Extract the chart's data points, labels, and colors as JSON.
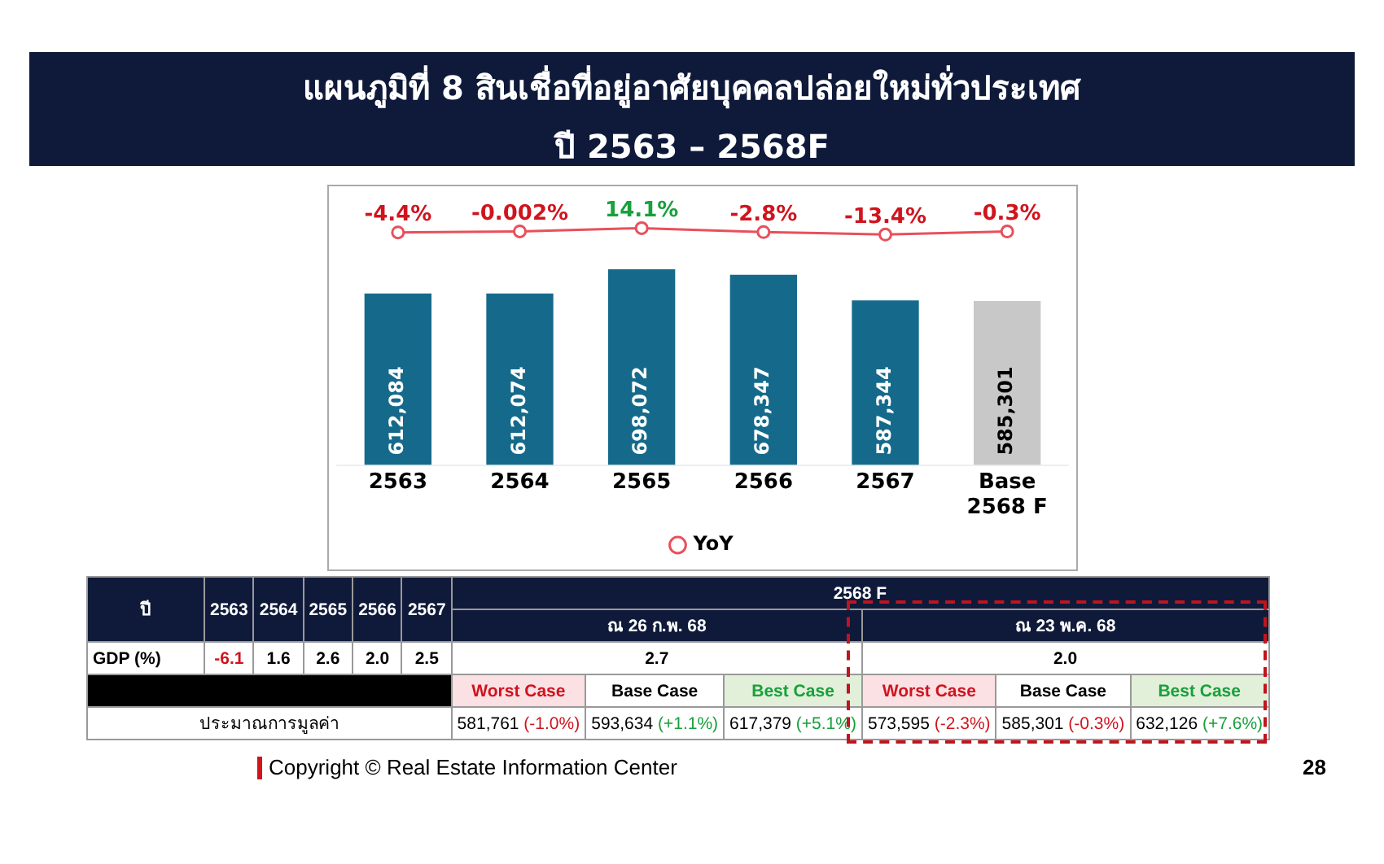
{
  "chart_data": {
    "type": "bar",
    "title": "แผนภูมิที่ 8 สินเชื่อที่อยู่อาศัยบุคคลปล่อยใหม่ทั่วประเทศ",
    "subtitle": "ปี 2563 – 2568F",
    "categories": [
      "2563",
      "2564",
      "2565",
      "2566",
      "2567",
      "Base 2568 F"
    ],
    "series": [
      {
        "colors": [
          "#156a8c",
          "#156a8c",
          "#156a8c",
          "#156a8c",
          "#156a8c",
          "#c8c8c8"
        ],
        "values": [
          612084,
          612074,
          698072,
          678347,
          587344,
          585301
        ],
        "value_labels": [
          "612,084",
          "612,074",
          "698,072",
          "678,347",
          "587,344",
          "585,301"
        ]
      },
      {
        "type": "line",
        "name": "YoY",
        "axis": "y2",
        "color": "#e8505b",
        "values": [
          -4.4,
          -0.002,
          14.1,
          -2.8,
          -13.4,
          -0.3
        ],
        "value_labels": [
          "-4.4%",
          "-0.002%",
          "14.1%",
          "-2.8%",
          "-13.4%",
          "-0.3%"
        ]
      }
    ],
    "ylim": [
      0,
      1000000
    ],
    "y2lim": [
      -1000,
      200
    ],
    "tick_labels": "x",
    "grid": false,
    "legend": "bottom",
    "marker": "circle",
    "line_style": "solid",
    "annotations": [
      "ปี",
      "2563",
      "2564",
      "2565",
      "2566",
      "2567",
      "2568 F",
      "ณ 26 ก.พ. 68",
      "ณ 23 พ.ค. 68",
      "GDP (%)",
      "-6.1",
      "1.6",
      "2.6",
      "2.0",
      "2.5",
      "2.7",
      "2.0",
      "Worst Case",
      "Base Case",
      "Best Case",
      "Worst Case",
      "Base Case",
      "Best Case",
      "ประมาณการมูลค่า",
      "581,761 (-1.0%)",
      "593,634 (+1.1%)",
      "617,379 (+5.1%)",
      "573,595 (-2.3%)",
      "585,301 (-0.3%)",
      "632,126 (+7.6%)",
      "Copyright © Real Estate Information Center",
      "28"
    ]
  }
}
